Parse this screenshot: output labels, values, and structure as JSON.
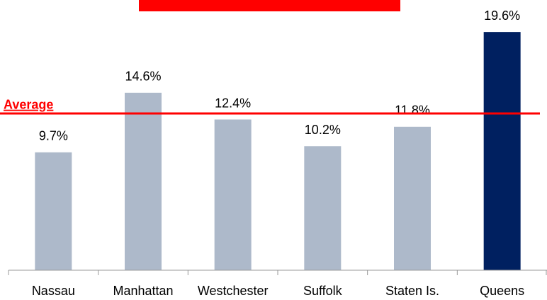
{
  "chart_data": {
    "type": "bar",
    "categories": [
      "Nassau",
      "Manhattan",
      "Westchester",
      "Suffolk",
      "Staten Is.",
      "Queens"
    ],
    "values": [
      9.7,
      14.6,
      12.4,
      10.2,
      11.8,
      19.6
    ],
    "value_labels": [
      "9.7%",
      "14.6%",
      "12.4%",
      "10.2%",
      "11.8%",
      "19.6%"
    ],
    "colors": [
      "#adb9ca",
      "#adb9ca",
      "#adb9ca",
      "#adb9ca",
      "#adb9ca",
      "#002060"
    ],
    "ylim": [
      0,
      22
    ],
    "average": {
      "label": "Average",
      "value": 12.9,
      "color": "#ff0000"
    }
  }
}
